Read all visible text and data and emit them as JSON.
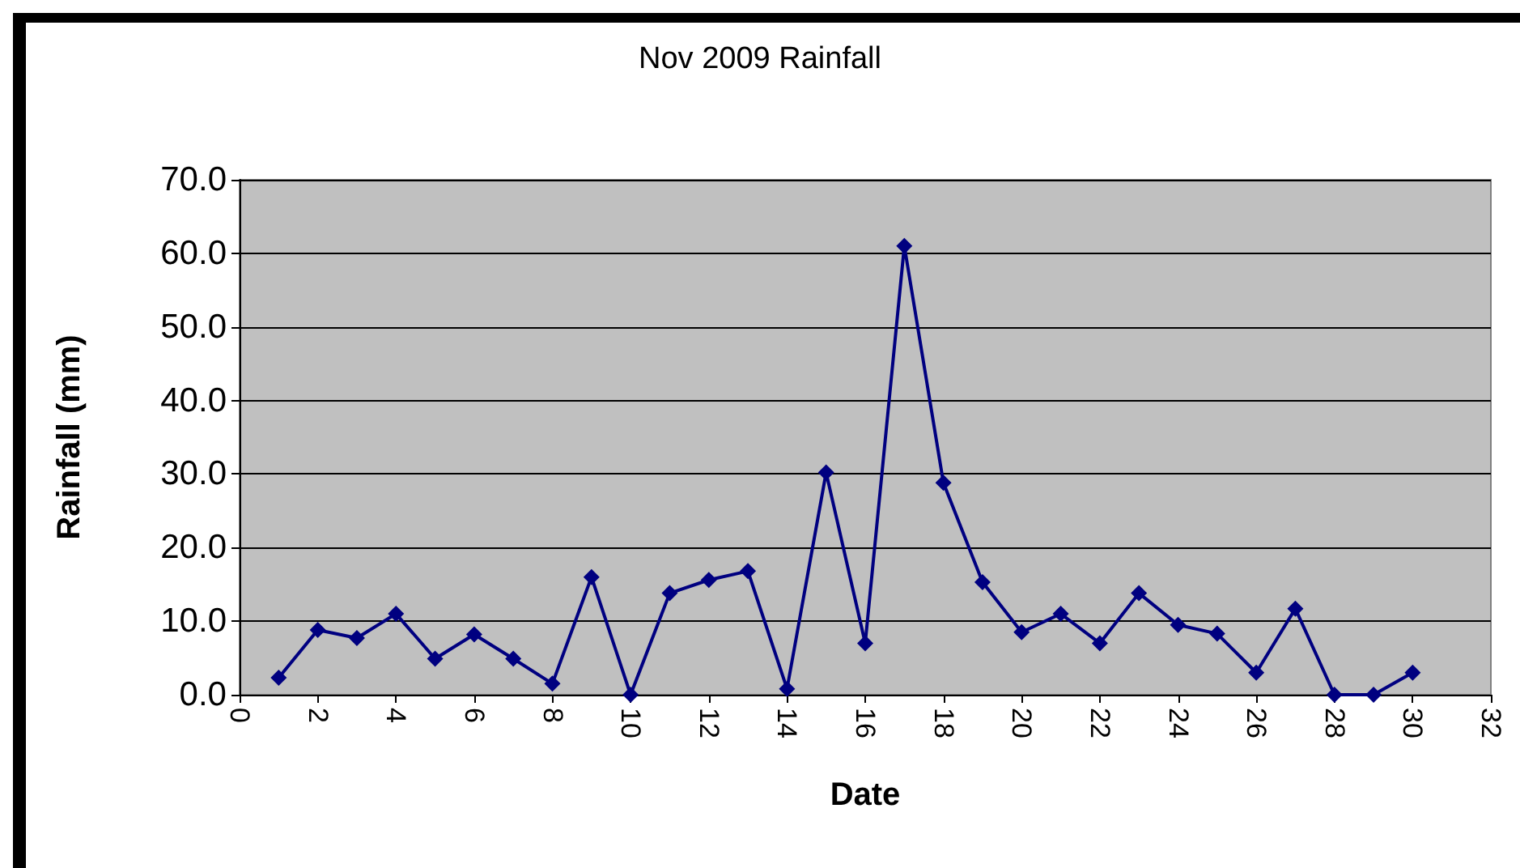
{
  "chart_data": {
    "type": "line",
    "title": "Nov 2009 Rainfall",
    "xlabel": "Date",
    "ylabel": "Rainfall (mm)",
    "x": [
      1,
      2,
      3,
      4,
      5,
      6,
      7,
      8,
      9,
      10,
      11,
      12,
      13,
      14,
      15,
      16,
      17,
      18,
      19,
      20,
      21,
      22,
      23,
      24,
      25,
      26,
      27,
      28,
      29,
      30
    ],
    "series": [
      {
        "color": "#000080",
        "values": [
          2.3,
          8.8,
          7.7,
          11.0,
          4.9,
          8.2,
          4.9,
          1.5,
          16.0,
          0,
          13.8,
          15.6,
          16.8,
          0.8,
          30.2,
          7.0,
          61.0,
          28.8,
          15.3,
          8.5,
          11.0,
          7.0,
          13.8,
          9.5,
          8.3,
          3.0,
          11.7,
          0,
          0,
          3.0
        ]
      }
    ],
    "xlim": [
      0,
      32
    ],
    "xticks": [
      0,
      2,
      4,
      6,
      8,
      10,
      12,
      14,
      16,
      18,
      20,
      22,
      24,
      26,
      28,
      30,
      32
    ],
    "ylim": [
      0,
      70
    ],
    "yticks": [
      {
        "value": 0,
        "label": "0.0"
      },
      {
        "value": 10,
        "label": "10.0"
      },
      {
        "value": 20,
        "label": "20.0"
      },
      {
        "value": 30,
        "label": "30.0"
      },
      {
        "value": 40,
        "label": "40.0"
      },
      {
        "value": 50,
        "label": "50.0"
      },
      {
        "value": 60,
        "label": "60.0"
      },
      {
        "value": 70,
        "label": "70.0"
      }
    ],
    "grid": "y",
    "marker": "diamond",
    "line_style": "solid"
  }
}
